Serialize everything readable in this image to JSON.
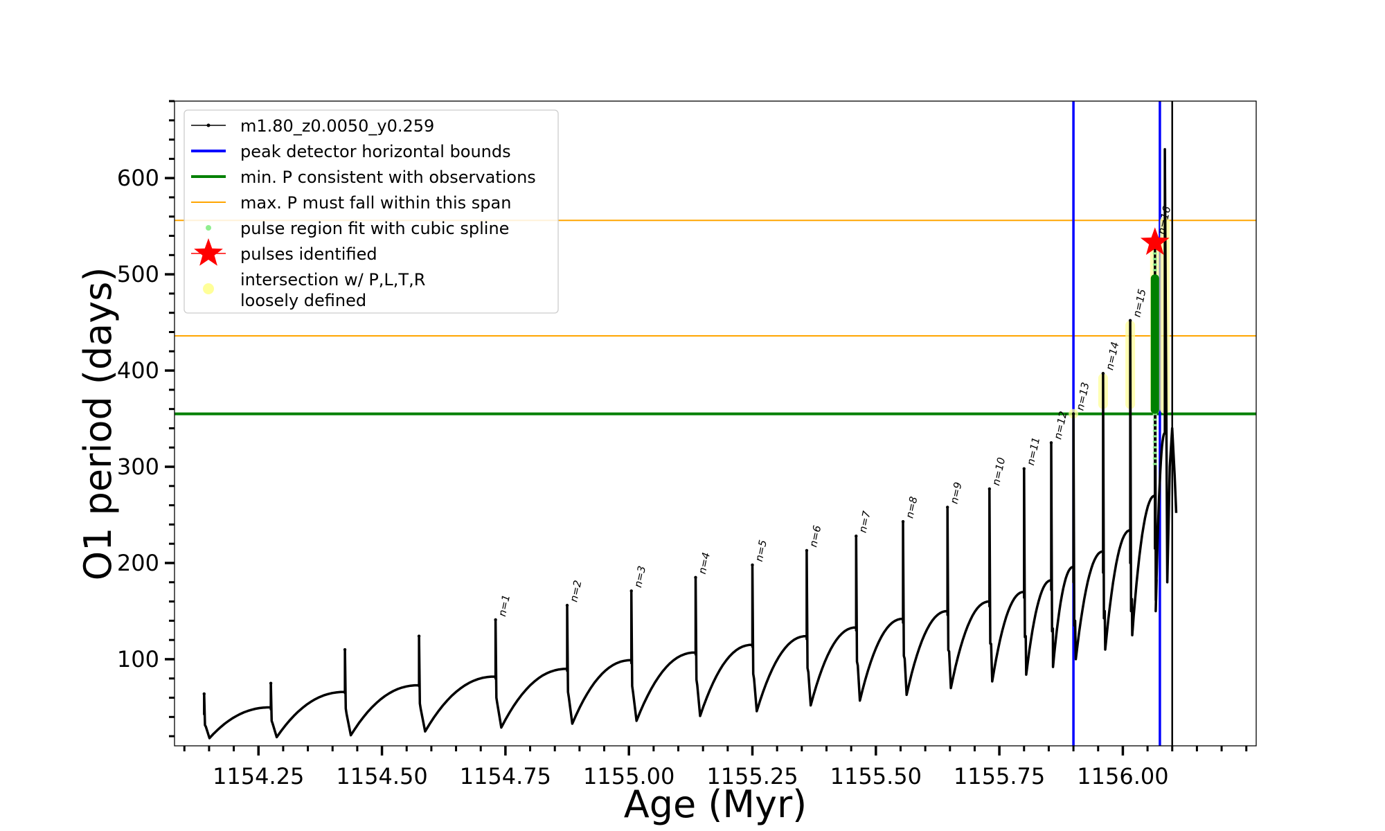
{
  "chart_data": {
    "type": "line",
    "title": "",
    "xlabel": "Age (Myr)",
    "ylabel": "O1 period (days)",
    "xlim": [
      1154.08,
      1156.27
    ],
    "ylim": [
      10,
      680
    ],
    "x_ticks": [
      1154.25,
      1154.5,
      1154.75,
      1155.0,
      1155.25,
      1155.5,
      1155.75,
      1156.0
    ],
    "x_tick_labels": [
      "1154.25",
      "1154.50",
      "1154.75",
      "1155.00",
      "1155.25",
      "1155.50",
      "1155.75",
      "1156.00"
    ],
    "x_minor_step": 0.05,
    "y_ticks": [
      100,
      200,
      300,
      400,
      500,
      600
    ],
    "y_tick_labels": [
      "100",
      "200",
      "300",
      "400",
      "500",
      "600"
    ],
    "y_minor_step": 20,
    "grid": false,
    "legend_position": "upper-left",
    "legend": [
      {
        "label": "m1.80_z0.0050_y0.259",
        "kind": "line-marker",
        "color": "#000000"
      },
      {
        "label": "peak detector horizontal bounds",
        "kind": "line",
        "color": "#0000ff"
      },
      {
        "label": "min. P consistent with observations",
        "kind": "line",
        "color": "#008000"
      },
      {
        "label": "max. P must fall within this span",
        "kind": "thin-line",
        "color": "#ffa500"
      },
      {
        "label": "pulse region fit with cubic spline",
        "kind": "dot",
        "color": "#90ee90"
      },
      {
        "label": "pulses identified",
        "kind": "star",
        "color": "#ff0000"
      },
      {
        "label": "intersection w/ P,L,T,R",
        "label2": "loosely defined",
        "kind": "big-dot",
        "color": "#ffff99"
      }
    ],
    "hlines": [
      {
        "name": "min-period",
        "y": 355,
        "color": "#008000"
      },
      {
        "name": "max-span-low",
        "y": 436,
        "color": "#ffa500"
      },
      {
        "name": "max-span-high",
        "y": 556,
        "color": "#ffa500"
      }
    ],
    "vlines": [
      {
        "name": "bound-left",
        "x": 1155.9,
        "color": "#0000ff"
      },
      {
        "name": "bound-right",
        "x": 1156.075,
        "color": "#0000ff"
      },
      {
        "name": "track-end",
        "x": 1156.1,
        "color": "#000000"
      }
    ],
    "pulses": [
      {
        "x": 1154.14,
        "peak": 64,
        "base": 42,
        "min": 18,
        "end": 50,
        "next": 1154.275
      },
      {
        "x": 1154.275,
        "peak": 75,
        "base": 48,
        "min": 19,
        "end": 66,
        "next": 1154.425
      },
      {
        "x": 1154.425,
        "peak": 110,
        "base": 65,
        "min": 21,
        "end": 73,
        "next": 1154.575
      },
      {
        "x": 1154.575,
        "peak": 124,
        "base": 72,
        "min": 25,
        "end": 82,
        "next": 1154.73
      },
      {
        "x": 1154.73,
        "peak": 141,
        "base": 80,
        "min": 29,
        "end": 90,
        "next": 1154.875,
        "label": "n=1"
      },
      {
        "x": 1154.875,
        "peak": 156,
        "base": 88,
        "min": 33,
        "end": 99,
        "next": 1155.005,
        "label": "n=2"
      },
      {
        "x": 1155.005,
        "peak": 171,
        "base": 96,
        "min": 36,
        "end": 107,
        "next": 1155.135,
        "label": "n=3"
      },
      {
        "x": 1155.135,
        "peak": 185,
        "base": 105,
        "min": 41,
        "end": 115,
        "next": 1155.25,
        "label": "n=4"
      },
      {
        "x": 1155.25,
        "peak": 198,
        "base": 113,
        "min": 46,
        "end": 124,
        "next": 1155.36,
        "label": "n=5"
      },
      {
        "x": 1155.36,
        "peak": 213,
        "base": 121,
        "min": 52,
        "end": 133,
        "next": 1155.46,
        "label": "n=6"
      },
      {
        "x": 1155.46,
        "peak": 228,
        "base": 130,
        "min": 57,
        "end": 142,
        "next": 1155.555,
        "label": "n=7"
      },
      {
        "x": 1155.555,
        "peak": 243,
        "base": 138,
        "min": 63,
        "end": 150,
        "next": 1155.645,
        "label": "n=8"
      },
      {
        "x": 1155.645,
        "peak": 258,
        "base": 146,
        "min": 70,
        "end": 160,
        "next": 1155.73,
        "label": "n=9"
      },
      {
        "x": 1155.73,
        "peak": 277,
        "base": 155,
        "min": 77,
        "end": 170,
        "next": 1155.8,
        "label": "n=10"
      },
      {
        "x": 1155.8,
        "peak": 298,
        "base": 164,
        "min": 84,
        "end": 182,
        "next": 1155.855,
        "label": "n=11"
      },
      {
        "x": 1155.855,
        "peak": 325,
        "base": 172,
        "min": 92,
        "end": 196,
        "next": 1155.9,
        "label": "n=12"
      },
      {
        "x": 1155.9,
        "peak": 355,
        "base": 180,
        "min": 100,
        "end": 212,
        "next": 1155.96,
        "label": "n=13"
      },
      {
        "x": 1155.96,
        "peak": 397,
        "base": 190,
        "min": 110,
        "end": 234,
        "next": 1156.015,
        "label": "n=14"
      },
      {
        "x": 1156.015,
        "peak": 452,
        "base": 200,
        "min": 125,
        "end": 270,
        "next": 1156.065,
        "label": "n=15"
      },
      {
        "x": 1156.065,
        "peak": 538,
        "base": 215,
        "min": 150,
        "end": 335,
        "next": 1156.085,
        "label": "n=16"
      }
    ],
    "tail": [
      {
        "x": 1156.085,
        "y": 630
      },
      {
        "x": 1156.09,
        "y": 180
      },
      {
        "x": 1156.095,
        "y": 300
      },
      {
        "x": 1156.1,
        "y": 340
      },
      {
        "x": 1156.105,
        "y": 290
      },
      {
        "x": 1156.108,
        "y": 252
      }
    ],
    "spline_fit_regions": [
      {
        "x": 1156.065,
        "y_from": 300,
        "y_to": 540
      }
    ],
    "loosely_defined_segments": [
      {
        "x": 1155.9,
        "y_from": 350,
        "y_to": 360
      },
      {
        "x": 1155.96,
        "y_from": 360,
        "y_to": 397
      },
      {
        "x": 1156.015,
        "y_from": 360,
        "y_to": 452
      },
      {
        "x": 1156.065,
        "y_from": 355,
        "y_to": 540
      },
      {
        "x": 1156.085,
        "y_from": 355,
        "y_to": 560
      }
    ],
    "identified_pulses": [
      {
        "x": 1156.065,
        "y": 533
      }
    ]
  }
}
